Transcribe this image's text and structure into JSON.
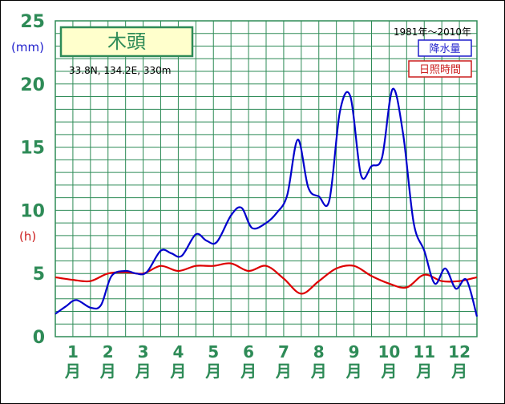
{
  "chart_data": {
    "type": "line",
    "title": "木頭",
    "coords": "33.8N, 134.2E, 330m",
    "period": "1981年～2010年",
    "ylabel_primary": "(mm)",
    "ylabel_secondary": "(h)",
    "ylim": [
      0,
      25
    ],
    "y_ticks": [
      "0",
      "5",
      "10",
      "15",
      "20",
      "25"
    ],
    "categories": [
      "1\n月",
      "2\n月",
      "3\n月",
      "4\n月",
      "5\n月",
      "6\n月",
      "7\n月",
      "8\n月",
      "9\n月",
      "10\n月",
      "11\n月",
      "12\n月"
    ],
    "month_numbers": [
      "1",
      "2",
      "3",
      "4",
      "5",
      "6",
      "7",
      "8",
      "9",
      "10",
      "11",
      "12"
    ],
    "month_char": "月",
    "grid": true,
    "legend_position": "top-right",
    "series": [
      {
        "name": "降水量",
        "color": "#0000cc",
        "x": [
          0.0,
          0.3,
          0.6,
          1.0,
          1.3,
          1.6,
          2.0,
          2.3,
          2.6,
          3.0,
          3.3,
          3.6,
          4.0,
          4.3,
          4.6,
          5.0,
          5.3,
          5.6,
          6.0,
          6.3,
          6.6,
          6.9,
          7.2,
          7.5,
          7.8,
          8.1,
          8.4,
          8.7,
          9.0,
          9.3,
          9.6,
          9.9,
          10.2,
          10.5,
          10.8,
          11.1,
          11.4,
          11.7,
          12.0
        ],
        "y": [
          1.8,
          2.4,
          2.9,
          2.3,
          2.5,
          4.8,
          5.2,
          5.0,
          5.1,
          6.8,
          6.6,
          6.4,
          8.1,
          7.6,
          7.5,
          9.6,
          10.2,
          8.6,
          9.0,
          9.8,
          11.2,
          15.6,
          11.8,
          11.1,
          10.8,
          17.8,
          19.0,
          12.8,
          13.5,
          14.2,
          19.6,
          16.0,
          9.0,
          6.8,
          4.2,
          5.4,
          3.8,
          4.5,
          1.6
        ]
      },
      {
        "name": "日照時間",
        "color": "#dd0000",
        "x": [
          0.0,
          0.5,
          1.0,
          1.5,
          2.0,
          2.5,
          3.0,
          3.5,
          4.0,
          4.5,
          5.0,
          5.5,
          6.0,
          6.5,
          7.0,
          7.5,
          8.0,
          8.5,
          9.0,
          9.5,
          10.0,
          10.5,
          11.0,
          11.5,
          12.0
        ],
        "y": [
          4.7,
          4.5,
          4.4,
          5.0,
          5.1,
          5.0,
          5.6,
          5.2,
          5.6,
          5.6,
          5.8,
          5.2,
          5.6,
          4.6,
          3.4,
          4.4,
          5.4,
          5.6,
          4.8,
          4.2,
          3.9,
          4.9,
          4.4,
          4.4,
          4.7
        ]
      }
    ]
  }
}
